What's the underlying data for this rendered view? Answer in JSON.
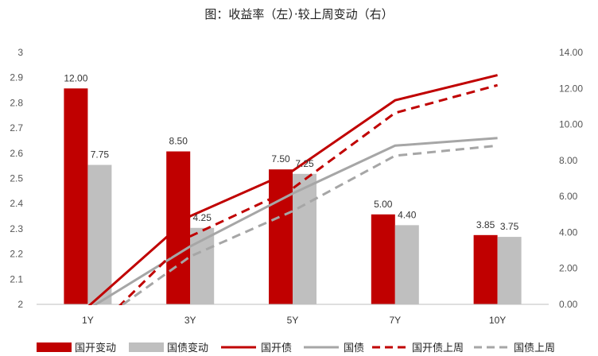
{
  "chart_data": {
    "type": "bar",
    "title": "图：收益率（左）·较上周变动（右）",
    "categories": [
      "1Y",
      "3Y",
      "5Y",
      "7Y",
      "10Y"
    ],
    "left_axis": {
      "ylim": [
        2,
        3
      ],
      "ticks": [
        "2",
        "2.1",
        "2.2",
        "2.3",
        "2.4",
        "2.5",
        "2.6",
        "2.7",
        "2.8",
        "2.9",
        "3"
      ]
    },
    "right_axis": {
      "ylim": [
        0,
        14
      ],
      "ticks": [
        "0.00",
        "2.00",
        "4.00",
        "6.00",
        "8.00",
        "10.00",
        "12.00",
        "14.00"
      ]
    },
    "bar_series": [
      {
        "name": "国开变动",
        "axis": "right",
        "color": "#c00000",
        "values": [
          12.0,
          8.5,
          7.5,
          5.0,
          3.85
        ],
        "labels": [
          "12.00",
          "8.50",
          "7.50",
          "5.00",
          "3.85"
        ]
      },
      {
        "name": "国债变动",
        "axis": "right",
        "color": "#bfbfbf",
        "values": [
          7.75,
          4.25,
          7.25,
          4.4,
          3.75
        ],
        "labels": [
          "7.75",
          "4.25",
          "7.25",
          "4.40",
          "3.75"
        ]
      }
    ],
    "line_series": [
      {
        "name": "国开债",
        "axis": "left",
        "color": "#c00000",
        "dashed": false,
        "values": [
          1.99,
          2.35,
          2.53,
          2.81,
          2.91
        ]
      },
      {
        "name": "国债",
        "axis": "left",
        "color": "#a6a6a6",
        "dashed": false,
        "values": [
          1.98,
          2.23,
          2.44,
          2.63,
          2.66
        ]
      },
      {
        "name": "国开债上周",
        "axis": "left",
        "color": "#c00000",
        "dashed": true,
        "values": [
          1.87,
          2.27,
          2.46,
          2.76,
          2.87
        ]
      },
      {
        "name": "国债上周",
        "axis": "left",
        "color": "#a6a6a6",
        "dashed": true,
        "values": [
          1.9,
          2.19,
          2.37,
          2.59,
          2.63
        ]
      }
    ],
    "legend": [
      "国开变动",
      "国债变动",
      "国开债",
      "国债",
      "国开债上周",
      "国债上周"
    ],
    "legend_position": "bottom",
    "grid": false
  }
}
